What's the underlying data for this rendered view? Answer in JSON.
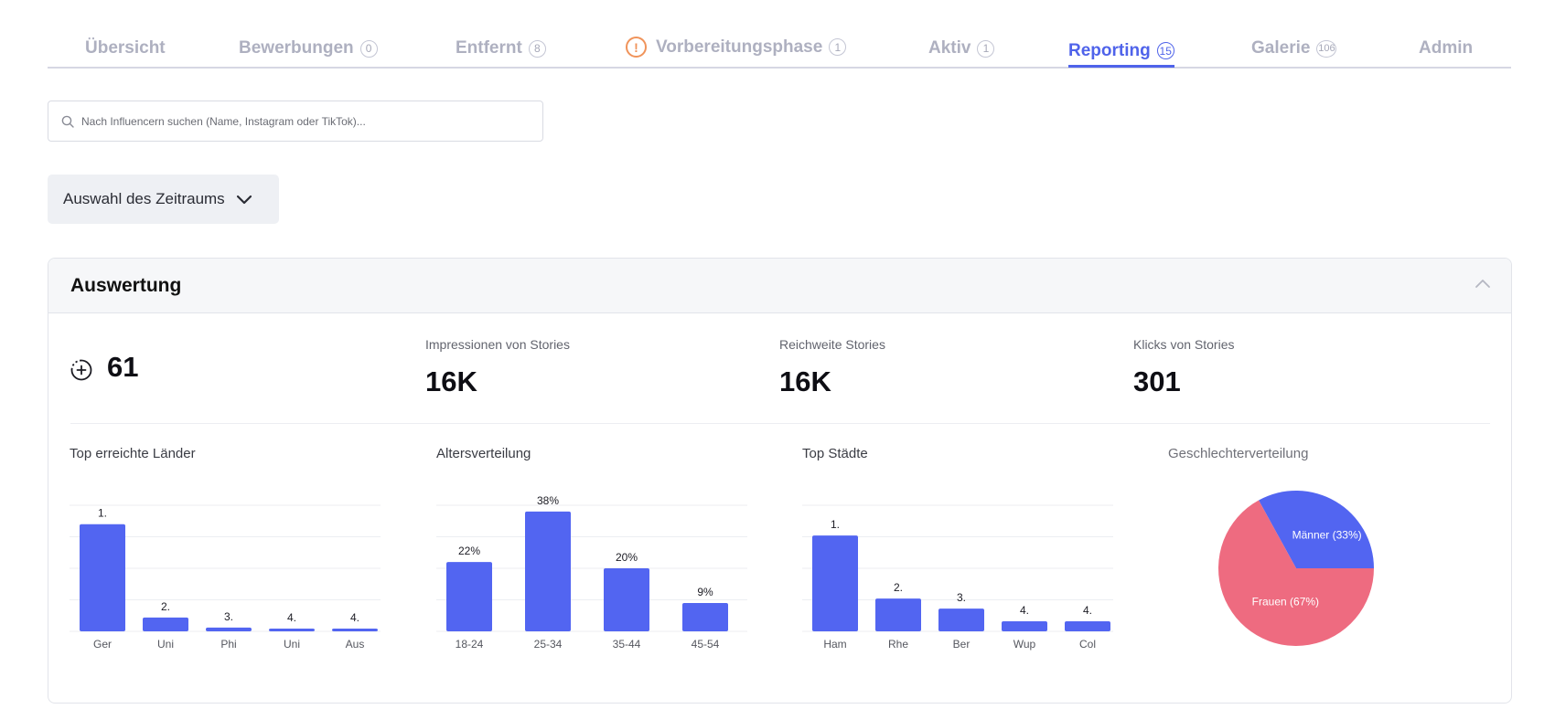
{
  "tabs": [
    {
      "label": "Übersicht",
      "count": ""
    },
    {
      "label": "Bewerbungen",
      "count": "0"
    },
    {
      "label": "Entfernt",
      "count": "8"
    },
    {
      "label": "Vorbereitungsphase",
      "count": "1",
      "warn_icon": "!"
    },
    {
      "label": "Aktiv",
      "count": "1"
    },
    {
      "label": "Reporting",
      "count": "15",
      "active": true
    },
    {
      "label": "Galerie",
      "count": "106"
    },
    {
      "label": "Admin",
      "count": ""
    }
  ],
  "search": {
    "placeholder": "Nach Influencern suchen (Name, Instagram oder TikTok)...",
    "icon": "search-icon"
  },
  "period_button": {
    "label": "Auswahl des Zeitraums",
    "icon": "chevron-down-icon"
  },
  "panel": {
    "title": "Auswertung",
    "collapse_icon": "chevron-up-icon",
    "kpis": {
      "posts": {
        "icon": "plus-circle-icon",
        "value": "61"
      },
      "impressions": {
        "label": "Impressionen von Stories",
        "value": "16K"
      },
      "reach": {
        "label": "Reichweite Stories",
        "value": "16K"
      },
      "clicks": {
        "label": "Klicks von Stories",
        "value": "301"
      }
    }
  },
  "colors": {
    "accent": "#4f63ea",
    "bar": "#5265f1",
    "female": "#ee6b80",
    "warning": "#f0935a"
  },
  "chart_data": [
    {
      "type": "bar",
      "title": "Top erreichte Länder",
      "categories": [
        "Ger",
        "Uni",
        "Phi",
        "Uni",
        "Aus"
      ],
      "values": [
        85,
        11,
        3,
        2,
        2
      ],
      "labels": [
        "1.",
        "2.",
        "3.",
        "4.",
        "4."
      ],
      "ylim": [
        0,
        100
      ],
      "grid": true
    },
    {
      "type": "bar",
      "title": "Altersverteilung",
      "categories": [
        "18-24",
        "25-34",
        "35-44",
        "45-54"
      ],
      "values": [
        22,
        38,
        20,
        9
      ],
      "labels": [
        "22%",
        "38%",
        "20%",
        "9%"
      ],
      "ylim": [
        0,
        40
      ],
      "grid": true
    },
    {
      "type": "bar",
      "title": "Top Städte",
      "categories": [
        "Ham",
        "Rhe",
        "Ber",
        "Wup",
        "Col"
      ],
      "values": [
        38,
        13,
        9,
        4,
        4
      ],
      "labels": [
        "1.",
        "2.",
        "3.",
        "4.",
        "4."
      ],
      "ylim": [
        0,
        50
      ],
      "grid": true
    },
    {
      "type": "pie",
      "title": "Geschlechterverteilung",
      "slices": [
        {
          "label": "Männer (33%)",
          "value": 33,
          "color": "#5265f1"
        },
        {
          "label": "Frauen (67%)",
          "value": 67,
          "color": "#ee6b80"
        }
      ]
    }
  ]
}
